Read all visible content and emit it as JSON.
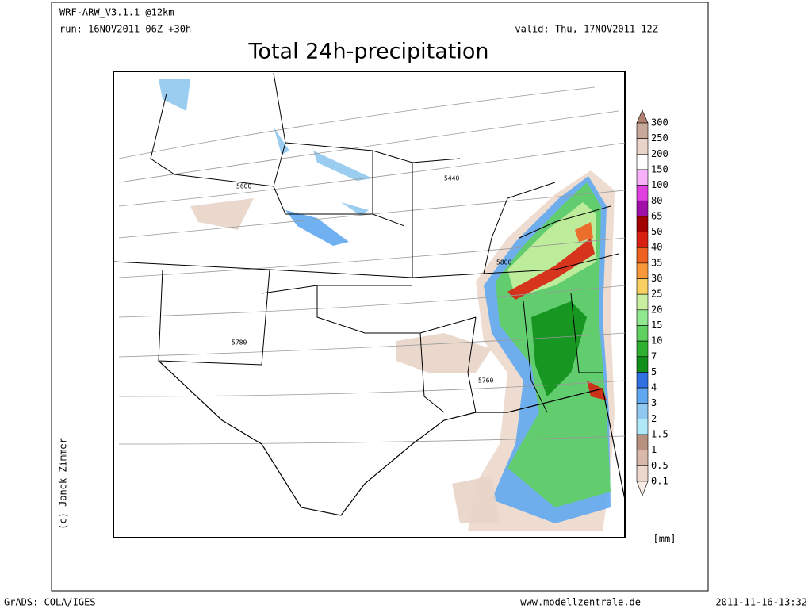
{
  "header": {
    "model": "WRF-ARW_V3.1.1 @12km",
    "run": "run: 16NOV2011 06Z +30h",
    "valid": "valid: Thu, 17NOV2011 12Z",
    "title": "Total 24h-precipitation"
  },
  "map": {
    "contour_labels": [
      "5600",
      "5440",
      "5800",
      "5780",
      "5760"
    ]
  },
  "colorbar": {
    "unit": "[mm]",
    "levels": [
      {
        "label": 300,
        "color": "#c8a898"
      },
      {
        "label": 250,
        "color": "#e8d4c8"
      },
      {
        "label": 200,
        "color": "#ffffff"
      },
      {
        "label": 150,
        "color": "#f8b0f8"
      },
      {
        "label": 100,
        "color": "#e040e0"
      },
      {
        "label": 80,
        "color": "#a010a8"
      },
      {
        "label": 65,
        "color": "#a00000"
      },
      {
        "label": 50,
        "color": "#d82010"
      },
      {
        "label": 40,
        "color": "#f06020"
      },
      {
        "label": 35,
        "color": "#f89838"
      },
      {
        "label": 30,
        "color": "#f8d060"
      },
      {
        "label": 25,
        "color": "#c8f0a0"
      },
      {
        "label": 20,
        "color": "#90e890"
      },
      {
        "label": 15,
        "color": "#60d060"
      },
      {
        "label": 10,
        "color": "#30b030"
      },
      {
        "label": 7,
        "color": "#109018"
      },
      {
        "label": 5,
        "color": "#3070e0"
      },
      {
        "label": 4,
        "color": "#60a8f0"
      },
      {
        "label": 3,
        "color": "#90c8f0"
      },
      {
        "label": 2,
        "color": "#b0e8f8"
      },
      {
        "label": 1.5,
        "color": "#b89080"
      },
      {
        "label": 1,
        "color": "#d8b8a8"
      },
      {
        "label": 0.5,
        "color": "#ecd8cc"
      },
      {
        "label": 0.1,
        "color": "#f8ece4"
      }
    ]
  },
  "credits": {
    "author": "(c) Janek Zimmer",
    "software": "GrADS: COLA/IGES",
    "website": "www.modellzentrale.de",
    "timestamp": "2011-11-16-13:32"
  }
}
